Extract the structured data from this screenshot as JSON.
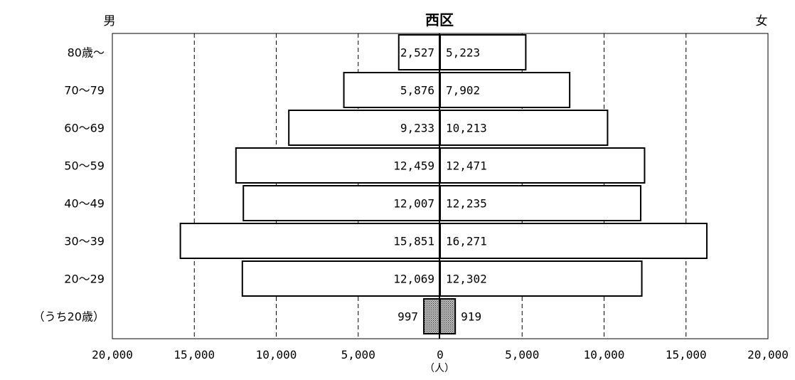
{
  "chart_data": {
    "type": "bar",
    "subtype": "population-pyramid",
    "title": "西区",
    "left_label": "男",
    "right_label": "女",
    "unit_label": "（人）",
    "categories": [
      "80歳～",
      "70～79",
      "60～69",
      "50～59",
      "40～49",
      "30～39",
      "20～29",
      "（うち20歳）"
    ],
    "series": [
      {
        "name": "男",
        "side": "left",
        "values": [
          2527,
          5876,
          9233,
          12459,
          12007,
          15851,
          12069,
          997
        ],
        "labels": [
          "2,527",
          "5,876",
          "9,233",
          "12,459",
          "12,007",
          "15,851",
          "12,069",
          "997"
        ]
      },
      {
        "name": "女",
        "side": "right",
        "values": [
          5223,
          7902,
          10213,
          12471,
          12235,
          16271,
          12302,
          919
        ],
        "labels": [
          "5,223",
          "7,902",
          "10,213",
          "12,471",
          "12,235",
          "16,271",
          "12,302",
          "919"
        ]
      }
    ],
    "highlight_category": "（うち20歳）",
    "xlim": [
      -20000,
      20000
    ],
    "x_ticks": [
      -20000,
      -15000,
      -10000,
      -5000,
      0,
      5000,
      10000,
      15000,
      20000
    ],
    "x_tick_labels": [
      "20,000",
      "15,000",
      "10,000",
      "5,000",
      "0",
      "5,000",
      "10,000",
      "15,000",
      "20,000"
    ],
    "grid": "vertical-dashed",
    "colors": {
      "bar_fill": "#ffffff",
      "bar_stroke": "#000000",
      "highlight_fill": "#888888"
    }
  }
}
